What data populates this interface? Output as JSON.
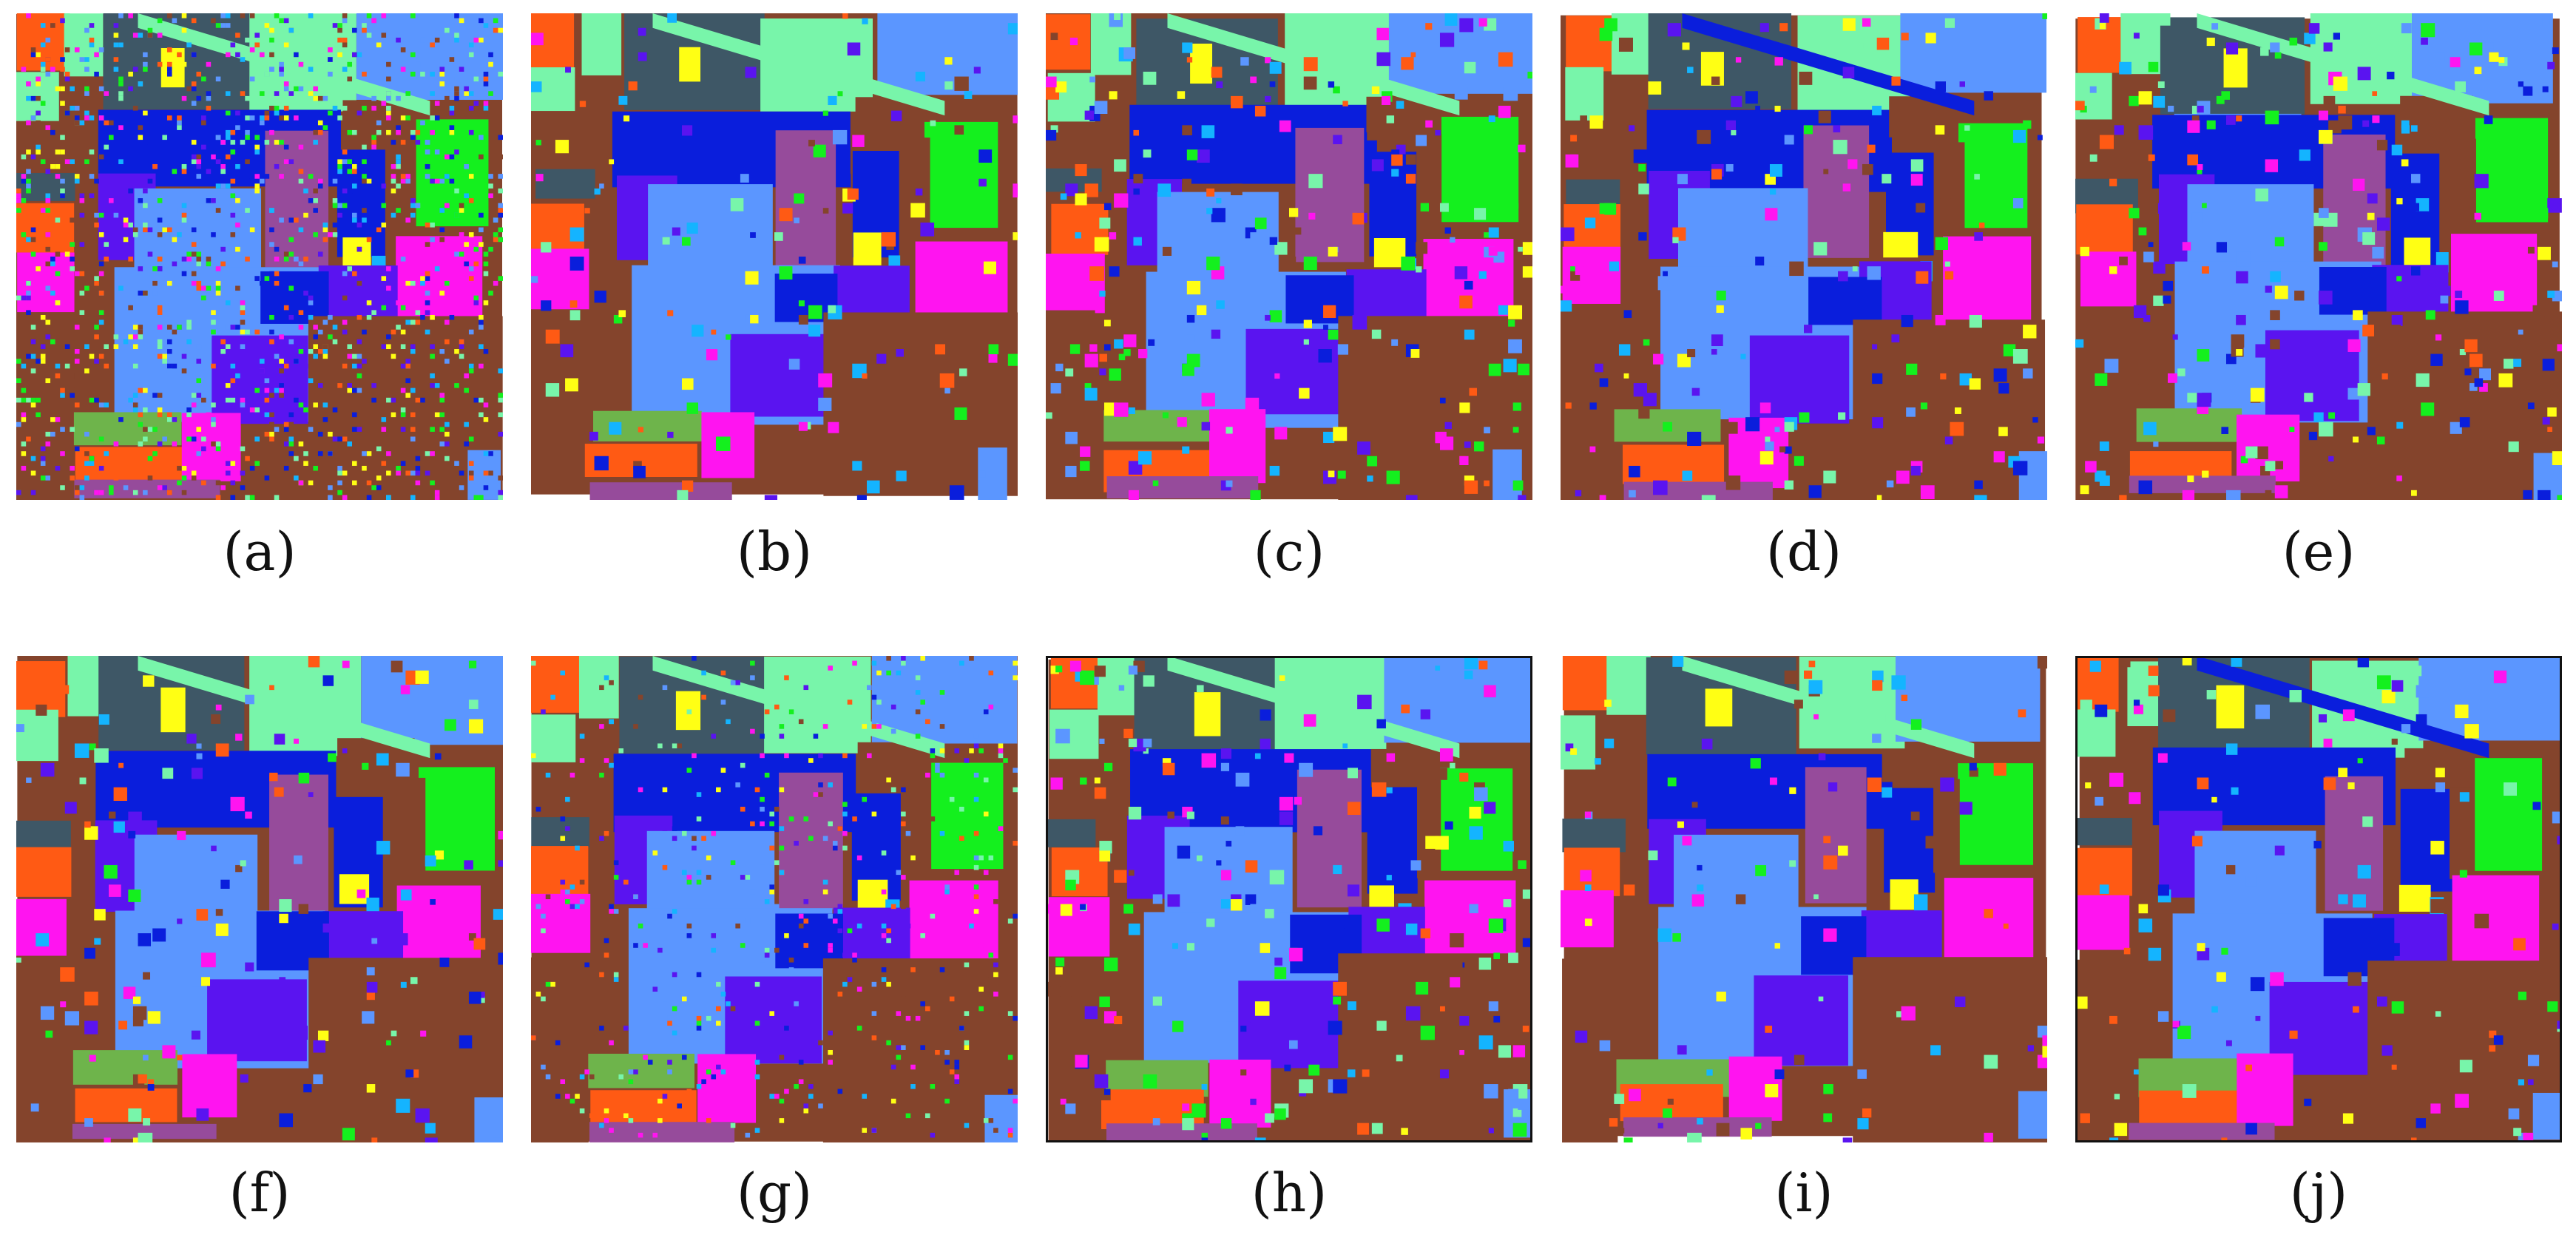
{
  "figure": {
    "panels": [
      {
        "label": "(a)",
        "framed": false
      },
      {
        "label": "(b)",
        "framed": false
      },
      {
        "label": "(c)",
        "framed": false
      },
      {
        "label": "(d)",
        "framed": false
      },
      {
        "label": "(e)",
        "framed": false
      },
      {
        "label": "(f)",
        "framed": false
      },
      {
        "label": "(g)",
        "framed": false
      },
      {
        "label": "(h)",
        "framed": true
      },
      {
        "label": "(i)",
        "framed": false
      },
      {
        "label": "(j)",
        "framed": true
      }
    ],
    "class_colors": {
      "slate": "#3e5766",
      "orange": "#ff5a14",
      "mint": "#78f5aa",
      "sky": "#5b96ff",
      "blue": "#0a1edc",
      "violet": "#5a14f0",
      "mauve": "#964b9b",
      "brown": "#84442c",
      "magenta": "#ff14f0",
      "green": "#14f01e",
      "yellow": "#ffff14",
      "olive": "#6eb44b",
      "cyan": "#14b4ff",
      "teal": "#14d7a5",
      "lightgreen": "#a0ffa0"
    }
  }
}
